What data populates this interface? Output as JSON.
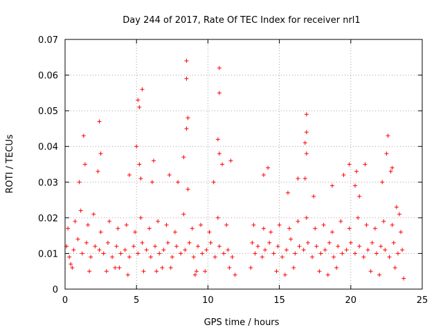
{
  "chart_data": {
    "type": "scatter",
    "title": "Day 244 of 2017, Rate Of TEC Index for receiver nrl1",
    "xlabel": "GPS time / hours",
    "ylabel": "ROTI / TECUs",
    "xlim": [
      0,
      25
    ],
    "ylim": [
      0,
      0.07
    ],
    "xticks": [
      "0",
      "5",
      "10",
      "15",
      "20",
      "25"
    ],
    "yticks": [
      "0",
      "0.01",
      "0.02",
      "0.03",
      "0.04",
      "0.05",
      "0.06",
      "0.07"
    ],
    "grid": true,
    "marker": "plus",
    "color": "#ff0000",
    "series": [
      {
        "x": [
          0.1,
          0.3,
          0.6,
          0.9,
          1.2,
          1.5,
          1.8,
          2.1,
          2.4,
          2.7,
          3.0,
          3.3,
          3.6,
          3.9,
          4.2,
          4.5,
          4.8,
          5.1,
          5.4,
          5.7,
          6.0,
          6.3,
          6.6,
          6.9,
          7.2,
          7.5,
          7.8,
          8.1,
          8.4,
          8.7,
          9.0,
          9.3,
          9.6,
          9.9,
          10.2,
          10.5,
          10.8,
          11.1,
          11.4,
          11.7,
          0.2,
          0.7,
          1.1,
          1.6,
          2.0,
          2.5,
          3.1,
          3.7,
          4.3,
          4.9,
          5.3,
          5.9,
          6.5,
          7.1,
          7.7,
          8.3,
          8.9,
          9.5,
          10.1,
          10.7,
          11.3,
          1.0,
          1.4,
          2.3,
          2.5,
          4.5,
          5.0,
          5.2,
          5.3,
          6.1,
          6.2,
          7.3,
          7.9,
          8.3,
          8.5,
          8.6,
          10.4,
          10.7,
          10.8,
          11.0,
          11.6,
          1.3,
          2.4,
          5.1,
          5.4,
          8.5,
          10.8,
          8.5,
          10.8,
          5.2,
          8.6,
          0.5,
          1.7,
          3.5,
          5.5,
          7.4,
          9.2,
          11.5,
          2.9,
          4.4,
          6.8,
          9.8,
          11.9,
          0.4,
          3.8,
          6.4,
          9.1,
          13.1,
          13.3,
          13.5,
          13.8,
          14.0,
          14.3,
          14.6,
          14.9,
          15.2,
          15.5,
          15.8,
          16.1,
          16.4,
          16.7,
          17.0,
          17.3,
          17.6,
          17.9,
          18.2,
          18.5,
          18.8,
          19.1,
          19.4,
          19.7,
          20.0,
          20.3,
          20.6,
          20.9,
          21.2,
          21.5,
          21.8,
          22.1,
          22.4,
          22.7,
          23.0,
          23.3,
          23.6,
          13.2,
          13.9,
          14.4,
          15.0,
          15.7,
          16.3,
          16.9,
          17.5,
          18.1,
          18.7,
          19.3,
          19.9,
          20.5,
          21.1,
          21.7,
          22.3,
          22.9,
          23.5,
          13.9,
          14.2,
          15.6,
          16.3,
          16.9,
          17.4,
          18.7,
          19.5,
          19.9,
          20.4,
          20.6,
          21.0,
          22.2,
          22.8,
          23.2,
          23.4,
          16.8,
          16.9,
          16.9,
          20.3,
          22.5,
          22.6,
          22.9,
          16.8,
          13.0,
          14.8,
          15.4,
          16.0,
          17.8,
          18.4,
          19.0,
          21.4,
          22.0,
          23.1,
          23.7
        ],
        "y": [
          0.012,
          0.009,
          0.011,
          0.014,
          0.01,
          0.013,
          0.009,
          0.012,
          0.011,
          0.01,
          0.013,
          0.009,
          0.012,
          0.01,
          0.011,
          0.009,
          0.012,
          0.01,
          0.013,
          0.011,
          0.009,
          0.012,
          0.01,
          0.011,
          0.013,
          0.009,
          0.012,
          0.01,
          0.011,
          0.013,
          0.009,
          0.012,
          0.01,
          0.011,
          0.013,
          0.009,
          0.012,
          0.01,
          0.011,
          0.009,
          0.017,
          0.019,
          0.022,
          0.018,
          0.021,
          0.016,
          0.019,
          0.017,
          0.018,
          0.016,
          0.02,
          0.017,
          0.019,
          0.018,
          0.016,
          0.021,
          0.017,
          0.018,
          0.016,
          0.02,
          0.018,
          0.03,
          0.035,
          0.033,
          0.038,
          0.032,
          0.04,
          0.035,
          0.031,
          0.03,
          0.036,
          0.032,
          0.03,
          0.037,
          0.045,
          0.028,
          0.03,
          0.042,
          0.038,
          0.035,
          0.036,
          0.043,
          0.047,
          0.053,
          0.056,
          0.059,
          0.055,
          0.064,
          0.062,
          0.051,
          0.048,
          0.006,
          0.005,
          0.006,
          0.005,
          0.006,
          0.005,
          0.006,
          0.005,
          0.004,
          0.006,
          0.005,
          0.004,
          0.007,
          0.006,
          0.005,
          0.004,
          0.013,
          0.01,
          0.012,
          0.009,
          0.011,
          0.013,
          0.01,
          0.012,
          0.009,
          0.011,
          0.014,
          0.01,
          0.012,
          0.011,
          0.013,
          0.009,
          0.012,
          0.01,
          0.011,
          0.013,
          0.009,
          0.012,
          0.01,
          0.011,
          0.013,
          0.01,
          0.012,
          0.009,
          0.011,
          0.013,
          0.01,
          0.012,
          0.011,
          0.009,
          0.013,
          0.01,
          0.011,
          0.018,
          0.017,
          0.016,
          0.018,
          0.017,
          0.019,
          0.02,
          0.017,
          0.018,
          0.016,
          0.019,
          0.017,
          0.02,
          0.018,
          0.017,
          0.019,
          0.018,
          0.016,
          0.032,
          0.034,
          0.027,
          0.031,
          0.038,
          0.026,
          0.029,
          0.032,
          0.035,
          0.033,
          0.026,
          0.035,
          0.03,
          0.033,
          0.023,
          0.021,
          0.041,
          0.044,
          0.049,
          0.029,
          0.038,
          0.043,
          0.034,
          0.031,
          0.006,
          0.005,
          0.004,
          0.006,
          0.005,
          0.004,
          0.006,
          0.005,
          0.004,
          0.006,
          0.003
        ]
      }
    ]
  }
}
